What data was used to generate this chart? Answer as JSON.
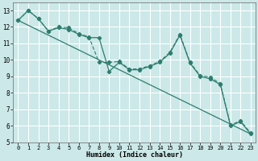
{
  "title": "",
  "xlabel": "Humidex (Indice chaleur)",
  "background_color": "#cce8e8",
  "grid_color": "#ffffff",
  "line_color": "#2d7d6e",
  "xlim": [
    -0.5,
    23.5
  ],
  "ylim": [
    5,
    13.5
  ],
  "yticks": [
    5,
    6,
    7,
    8,
    9,
    10,
    11,
    12,
    13
  ],
  "xticks": [
    0,
    1,
    2,
    3,
    4,
    5,
    6,
    7,
    8,
    9,
    10,
    11,
    12,
    13,
    14,
    15,
    16,
    17,
    18,
    19,
    20,
    21,
    22,
    23
  ],
  "line1_x": [
    0,
    1,
    2,
    3,
    4,
    5,
    6,
    7,
    8,
    9,
    10,
    11,
    12,
    13,
    14,
    15,
    16,
    17,
    18,
    19,
    20,
    21,
    22,
    23
  ],
  "line1_y": [
    12.4,
    13.0,
    12.5,
    11.75,
    11.95,
    11.85,
    11.55,
    11.35,
    11.35,
    9.3,
    9.85,
    9.4,
    9.4,
    9.6,
    9.85,
    10.4,
    11.5,
    9.8,
    9.0,
    8.85,
    8.5,
    6.0,
    6.25,
    5.5
  ],
  "line2_x": [
    0,
    1,
    2,
    3,
    4,
    5,
    6,
    7,
    8,
    9,
    10,
    11,
    12,
    13,
    14,
    15,
    16,
    17,
    18,
    19,
    20,
    21,
    22,
    23
  ],
  "line2_y": [
    12.4,
    13.0,
    12.5,
    11.75,
    12.0,
    11.95,
    11.6,
    11.4,
    9.85,
    9.85,
    9.9,
    9.45,
    9.45,
    9.65,
    9.9,
    10.45,
    11.55,
    9.85,
    9.05,
    8.95,
    8.55,
    6.05,
    6.3,
    5.55
  ],
  "trend_x": [
    0,
    23
  ],
  "trend_y": [
    12.4,
    5.5
  ],
  "font_family": "monospace"
}
